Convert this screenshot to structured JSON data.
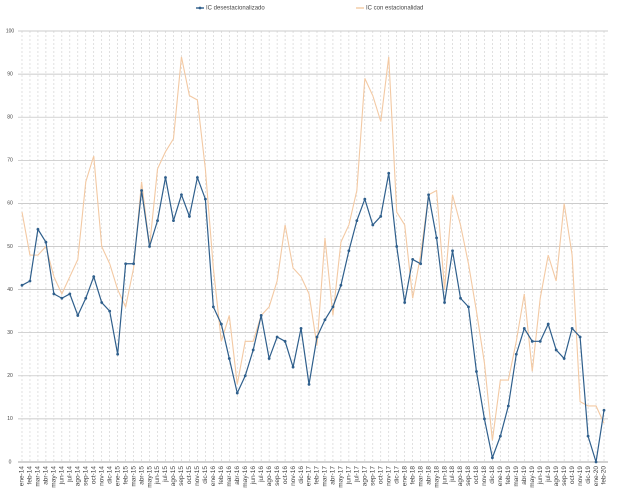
{
  "chart_data": {
    "type": "line",
    "categories": [
      "ene-14",
      "feb-14",
      "mar-14",
      "abr-14",
      "may-14",
      "jun-14",
      "jul-14",
      "ago-14",
      "sep-14",
      "oct-14",
      "nov-14",
      "dic-14",
      "ene-15",
      "feb-15",
      "mar-15",
      "abr-15",
      "may-15",
      "jun-15",
      "jul-15",
      "ago-15",
      "sep-15",
      "oct-15",
      "nov-15",
      "dic-15",
      "ene-16",
      "feb-16",
      "mar-16",
      "abr-16",
      "may-16",
      "jun-16",
      "jul-16",
      "ago-16",
      "sep-16",
      "oct-16",
      "nov-16",
      "dic-16",
      "ene-17",
      "feb-17",
      "mar-17",
      "abr-17",
      "may-17",
      "jun-17",
      "jul-17",
      "ago-17",
      "sep-17",
      "oct-17",
      "nov-17",
      "dic-17",
      "ene-18",
      "feb-18",
      "mar-18",
      "abr-18",
      "may-18",
      "jun-18",
      "jul-18",
      "ago-18",
      "sep-18",
      "oct-18",
      "nov-18",
      "dic-18",
      "ene-19",
      "feb-19",
      "mar-19",
      "abr-19",
      "may-19",
      "jun-19",
      "jul-19",
      "ago-19",
      "sep-19",
      "oct-19",
      "nov-19",
      "dic-19",
      "ene-20",
      "feb-20"
    ],
    "series": [
      {
        "name": "IC desestacionalizado",
        "color": "#2f5f8c",
        "markers": true,
        "values": [
          41,
          42,
          54,
          51,
          39,
          38,
          39,
          34,
          38,
          43,
          37,
          35,
          25,
          46,
          46,
          63,
          50,
          56,
          66,
          56,
          62,
          57,
          66,
          61,
          36,
          32,
          24,
          16,
          20,
          26,
          34,
          24,
          29,
          28,
          22,
          31,
          18,
          29,
          33,
          36,
          41,
          49,
          56,
          61,
          55,
          57,
          67,
          50,
          37,
          47,
          46,
          62,
          52,
          37,
          49,
          38,
          36,
          21,
          10,
          1,
          6,
          13,
          25,
          31,
          28,
          28,
          32,
          26,
          24,
          31,
          29,
          6,
          0,
          12
        ]
      },
      {
        "name": "IC con estacionalidad",
        "color": "#f3c9a3",
        "markers": false,
        "values": [
          58,
          48,
          48,
          50,
          43,
          39,
          43,
          47,
          65,
          71,
          50,
          46,
          40,
          36,
          45,
          65,
          50,
          68,
          72,
          75,
          94,
          85,
          84,
          68,
          45,
          28,
          34,
          18,
          28,
          28,
          34,
          36,
          42,
          55,
          45,
          43,
          39,
          27,
          52,
          34,
          51,
          55,
          63,
          89,
          85,
          79,
          94,
          58,
          55,
          38,
          48,
          62,
          63,
          40,
          62,
          55,
          46,
          35,
          23,
          5,
          19,
          19,
          28,
          39,
          21,
          38,
          48,
          42,
          60,
          48,
          14,
          13,
          13,
          9
        ]
      }
    ],
    "ylim": [
      0,
      100
    ],
    "yticks": [
      0,
      10,
      20,
      30,
      40,
      50,
      60,
      70,
      80,
      90,
      100
    ],
    "grid": true
  }
}
